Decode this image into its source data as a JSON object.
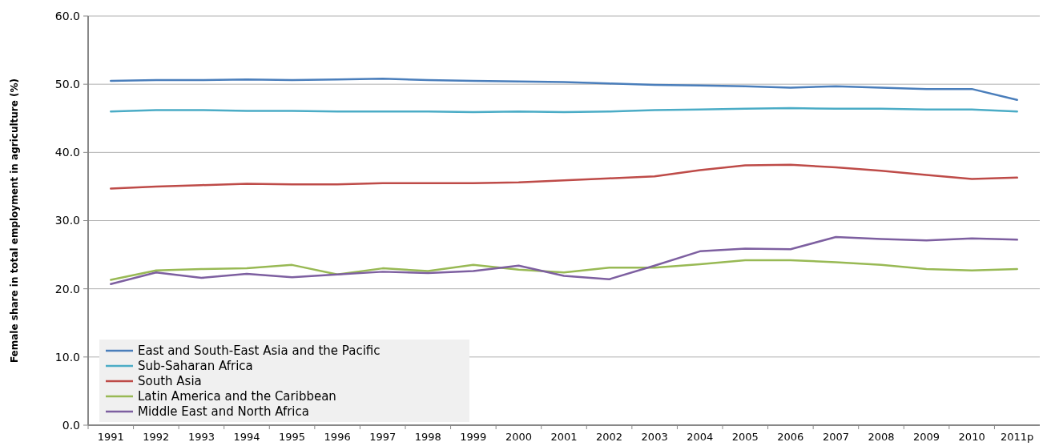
{
  "chart_data": {
    "type": "line",
    "ylabel": "Female share in total employment in agriculture (%)",
    "categories": [
      "1991",
      "1992",
      "1993",
      "1994",
      "1995",
      "1996",
      "1997",
      "1998",
      "1999",
      "2000",
      "2001",
      "2002",
      "2003",
      "2004",
      "2005",
      "2006",
      "2007",
      "2008",
      "2009",
      "2010",
      "2011p"
    ],
    "ylim": [
      0,
      60
    ],
    "yticks": [
      {
        "value": 0,
        "label": "0.0"
      },
      {
        "value": 10,
        "label": "10.0"
      },
      {
        "value": 20,
        "label": "20.0"
      },
      {
        "value": 30,
        "label": "30.0"
      },
      {
        "value": 40,
        "label": "40.0"
      },
      {
        "value": 50,
        "label": "50.0"
      },
      {
        "value": 60,
        "label": "60.0"
      }
    ],
    "grid": "y",
    "legend": "bottom left",
    "marker": "none",
    "line_style": "solid",
    "series": [
      {
        "name": "East and South-East Asia and the Pacific",
        "color": "#4a7ebb",
        "values": [
          50.5,
          50.6,
          50.6,
          50.7,
          50.6,
          50.7,
          50.8,
          50.6,
          50.5,
          50.4,
          50.3,
          50.1,
          49.9,
          49.8,
          49.7,
          49.5,
          49.7,
          49.5,
          49.3,
          49.3,
          47.7
        ]
      },
      {
        "name": "Sub-Saharan Africa",
        "color": "#4bacc6",
        "values": [
          46.0,
          46.2,
          46.2,
          46.1,
          46.1,
          46.0,
          46.0,
          46.0,
          45.9,
          46.0,
          45.9,
          46.0,
          46.2,
          46.3,
          46.4,
          46.5,
          46.4,
          46.4,
          46.3,
          46.3,
          46.0
        ]
      },
      {
        "name": "South Asia",
        "color": "#be4b48",
        "values": [
          34.7,
          35.0,
          35.2,
          35.4,
          35.3,
          35.3,
          35.5,
          35.5,
          35.5,
          35.6,
          35.9,
          36.2,
          36.5,
          37.4,
          38.1,
          38.2,
          37.8,
          37.3,
          36.7,
          36.1,
          36.3
        ]
      },
      {
        "name": "Latin America and the Caribbean",
        "color": "#98b954",
        "values": [
          21.3,
          22.7,
          22.9,
          23.0,
          23.5,
          22.1,
          23.0,
          22.6,
          23.5,
          22.8,
          22.4,
          23.1,
          23.1,
          23.6,
          24.2,
          24.2,
          23.9,
          23.5,
          22.9,
          22.7,
          22.9
        ]
      },
      {
        "name": "Middle East and North Africa",
        "color": "#7d5fa0",
        "values": [
          20.7,
          22.4,
          21.6,
          22.2,
          21.7,
          22.1,
          22.5,
          22.3,
          22.6,
          23.4,
          21.9,
          21.4,
          23.4,
          25.5,
          25.9,
          25.8,
          27.6,
          27.3,
          27.1,
          27.4,
          27.2
        ]
      }
    ]
  }
}
